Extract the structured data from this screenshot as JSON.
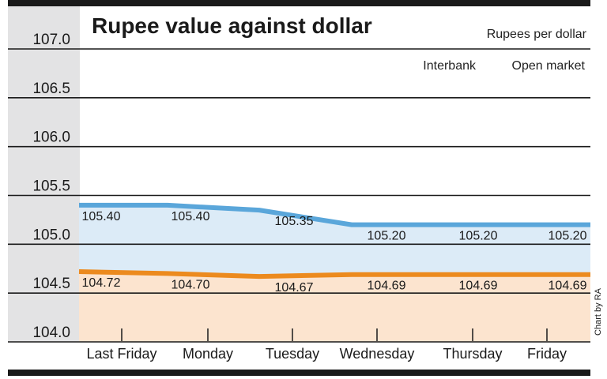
{
  "chart_data": {
    "type": "area",
    "title": "Rupee value against dollar",
    "subtitle": "Rupees per dollar",
    "credit": "Chart by RA",
    "categories": [
      "Last Friday",
      "Monday",
      "Tuesday",
      "Wednesday",
      "Thursday",
      "Friday"
    ],
    "y_ticks": [
      "107.0",
      "106.5",
      "106.0",
      "105.5",
      "105.0",
      "104.5",
      "104.0"
    ],
    "ylim": [
      104.0,
      107.0
    ],
    "grid": true,
    "legend_position": "top-right",
    "series": [
      {
        "name": "Interbank",
        "values": [
          105.4,
          105.4,
          105.35,
          105.2,
          105.2,
          105.2
        ],
        "labels": [
          "105.40",
          "105.40",
          "105.35",
          "105.20",
          "105.20",
          "105.20"
        ],
        "line_color": "#5aa6da",
        "fill_color": "#dcebf7"
      },
      {
        "name": "Open market",
        "values": [
          104.72,
          104.7,
          104.67,
          104.69,
          104.69,
          104.69
        ],
        "labels": [
          "104.72",
          "104.70",
          "104.67",
          "104.69",
          "104.69",
          "104.69"
        ],
        "line_color": "#ec8a1e",
        "fill_color": "#fce4cf"
      }
    ]
  }
}
